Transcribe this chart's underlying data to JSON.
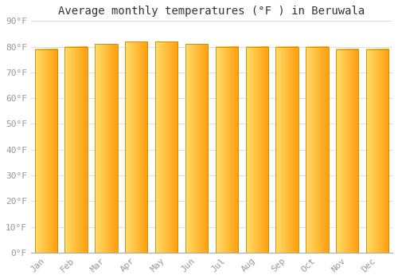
{
  "title": "Average monthly temperatures (°F ) in Beruwala",
  "months": [
    "Jan",
    "Feb",
    "Mar",
    "Apr",
    "May",
    "Jun",
    "Jul",
    "Aug",
    "Sep",
    "Oct",
    "Nov",
    "Dec"
  ],
  "values": [
    79,
    80,
    81,
    82,
    82,
    81,
    80,
    80,
    80,
    80,
    79,
    79
  ],
  "ylim": [
    0,
    90
  ],
  "yticks": [
    0,
    10,
    20,
    30,
    40,
    50,
    60,
    70,
    80,
    90
  ],
  "ytick_labels": [
    "0°F",
    "10°F",
    "20°F",
    "30°F",
    "40°F",
    "50°F",
    "60°F",
    "70°F",
    "80°F",
    "90°F"
  ],
  "bar_color_left": "#FFD966",
  "bar_color_right": "#FFA500",
  "bar_edge_color": "#CC8800",
  "background_color": "#FFFFFF",
  "grid_color": "#DDDDDD",
  "title_fontsize": 10,
  "tick_fontsize": 8,
  "tick_color": "#999999",
  "font_family": "monospace",
  "bar_width": 0.75
}
